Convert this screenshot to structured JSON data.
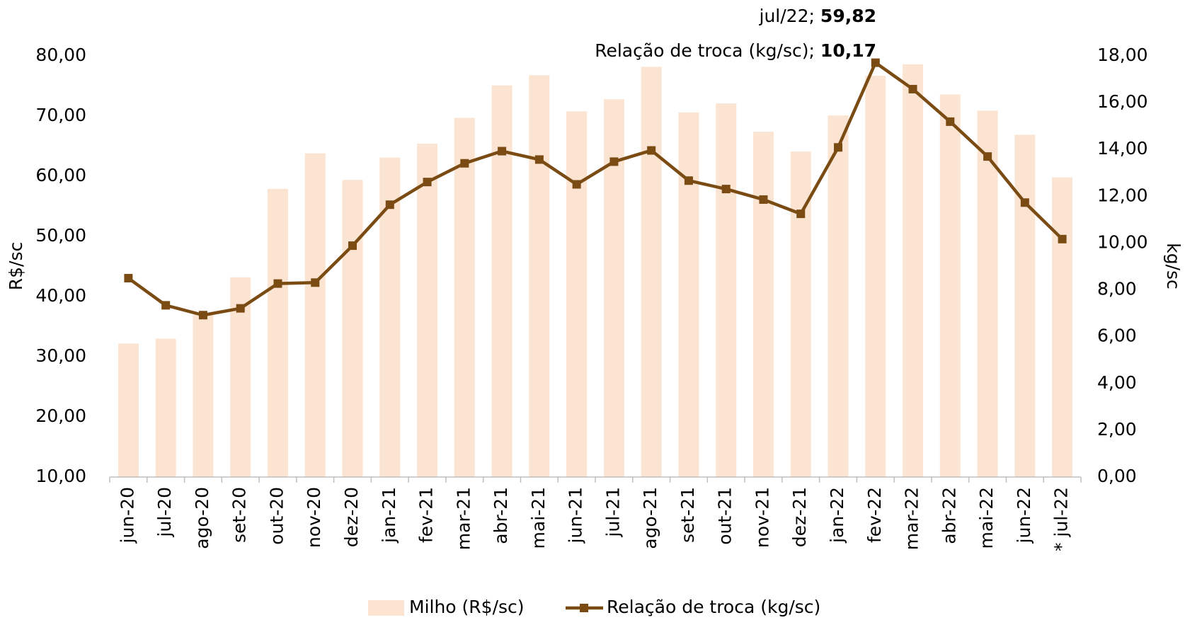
{
  "chart_data": {
    "type": "bar_line",
    "annotations": [
      {
        "text": "jul/22;",
        "value": "59,82"
      },
      {
        "text": "Relação de troca (kg/sc);",
        "value": "10,17"
      }
    ],
    "ylabel": "R$/sc",
    "y2label": "kg/sc",
    "categories": [
      "jun-20",
      "jul-20",
      "ago-20",
      "set-20",
      "out-20",
      "nov-20",
      "dez-20",
      "jan-21",
      "fev-21",
      "mar-21",
      "abr-21",
      "mai-21",
      "jun-21",
      "jul-21",
      "ago-21",
      "set-21",
      "out-21",
      "nov-21",
      "dez-21",
      "jan-22",
      "fev-22",
      "mar-22",
      "abr-22",
      "mai-22",
      "jun-22",
      "* jul-22"
    ],
    "series": [
      {
        "name": "Milho (R$/sc)",
        "type": "bar",
        "color": "#fce4d2",
        "axis": "y",
        "values": [
          32.2,
          33.0,
          37.0,
          43.2,
          57.9,
          63.8,
          59.4,
          63.1,
          65.4,
          69.7,
          75.1,
          76.8,
          70.8,
          72.8,
          78.2,
          70.6,
          72.1,
          67.4,
          64.1,
          70.1,
          76.7,
          78.6,
          73.6,
          70.9,
          66.9,
          59.82
        ]
      },
      {
        "name": "Relação de troca (kg/sc)",
        "type": "line",
        "color": "#7b4b14",
        "axis": "y2",
        "values": [
          8.5,
          7.34,
          6.92,
          7.21,
          8.27,
          8.31,
          9.89,
          11.64,
          12.61,
          13.41,
          13.93,
          13.57,
          12.51,
          13.48,
          13.96,
          12.67,
          12.31,
          11.86,
          11.25,
          14.09,
          17.71,
          16.58,
          15.19,
          13.7,
          11.73,
          10.17
        ]
      }
    ],
    "ylim": [
      10,
      80
    ],
    "yticks": [
      {
        "value": 10,
        "label": "10,00"
      },
      {
        "value": 20,
        "label": "20,00"
      },
      {
        "value": 30,
        "label": "30,00"
      },
      {
        "value": 40,
        "label": "40,00"
      },
      {
        "value": 50,
        "label": "50,00"
      },
      {
        "value": 60,
        "label": "60,00"
      },
      {
        "value": 70,
        "label": "70,00"
      },
      {
        "value": 80,
        "label": "80,00"
      }
    ],
    "y2lim": [
      0,
      18
    ],
    "y2ticks": [
      {
        "value": 0,
        "label": "0,00"
      },
      {
        "value": 2,
        "label": "2,00"
      },
      {
        "value": 4,
        "label": "4,00"
      },
      {
        "value": 6,
        "label": "6,00"
      },
      {
        "value": 8,
        "label": "8,00"
      },
      {
        "value": 10,
        "label": "10,00"
      },
      {
        "value": 12,
        "label": "12,00"
      },
      {
        "value": 14,
        "label": "14,00"
      },
      {
        "value": 16,
        "label": "16,00"
      },
      {
        "value": 18,
        "label": "18,00"
      }
    ],
    "grid": false,
    "legend": "bottom"
  }
}
